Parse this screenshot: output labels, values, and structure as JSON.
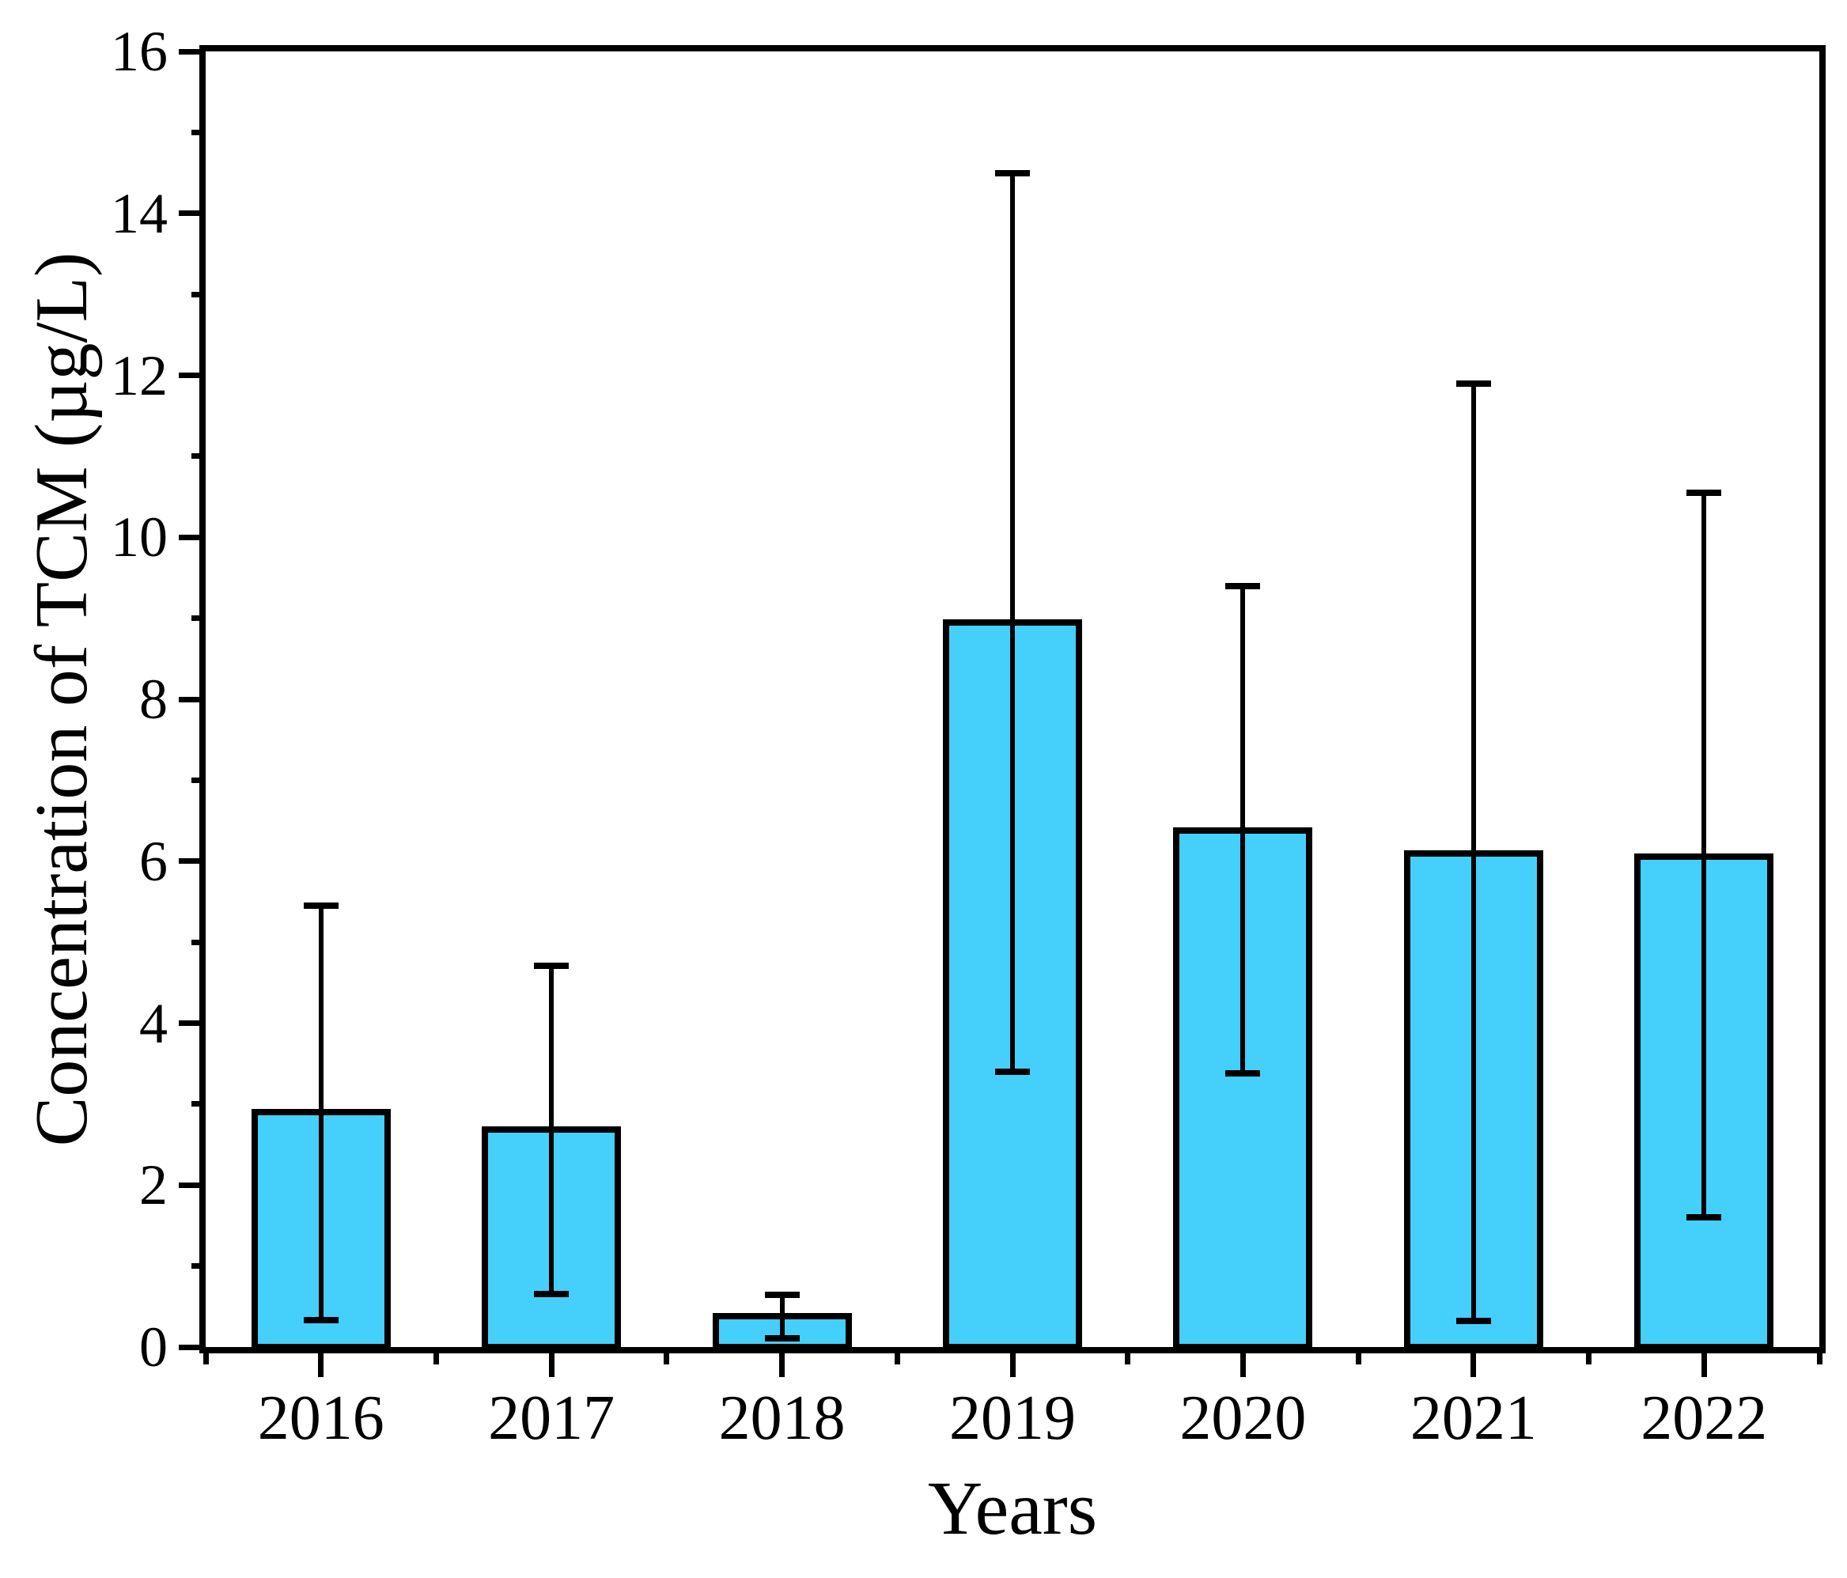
{
  "figure": {
    "background_color": "#ffffff",
    "frame_color": "#000000"
  },
  "chart_data": {
    "type": "bar",
    "title": "",
    "xlabel": "Years",
    "ylabel": "Concentration of TCM (µg/L)",
    "categories": [
      "2016",
      "2017",
      "2018",
      "2019",
      "2020",
      "2021",
      "2022"
    ],
    "values": [
      2.9,
      2.69,
      0.38,
      8.95,
      6.38,
      6.1,
      6.06
    ],
    "whisker_top": [
      5.45,
      4.71,
      0.64,
      14.5,
      9.4,
      11.9,
      10.55
    ],
    "whisker_bottom": [
      0.33,
      0.65,
      0.11,
      3.4,
      3.38,
      0.32,
      1.6
    ],
    "ylim": [
      0,
      16
    ],
    "ytick_step": 2,
    "yminor_step": 1,
    "grid": false,
    "legend": null,
    "bar_color": "#45CFFB",
    "bar_border_color": "#000000",
    "error_bar_color": "#000000"
  }
}
